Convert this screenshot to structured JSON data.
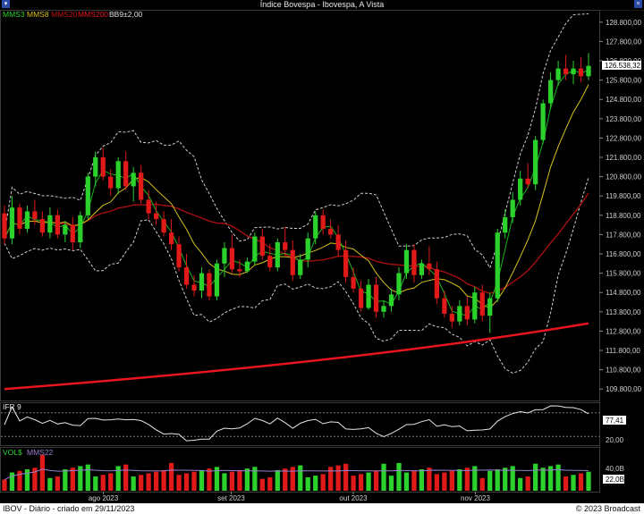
{
  "window": {
    "title": "Índice Bovespa - Ibovespa, A Vista"
  },
  "legend": {
    "mms3": "MMS3",
    "mms8": "MMS8",
    "mms20": "MMS20",
    "mms200": "MMS200",
    "bb": "BB9±2,00"
  },
  "colors": {
    "up": "#2cd22c",
    "down": "#e01919",
    "mms3": "#19b419",
    "mms8": "#d6c21a",
    "mms20": "#b01010",
    "mms200": "#e8141e",
    "bands": "#cfcfcf",
    "last_price_bg": "#ffffff"
  },
  "price_axis": {
    "ticks": [
      "128.800,00",
      "127.800,00",
      "126.800,00",
      "125.800,00",
      "124.800,00",
      "123.800,00",
      "122.800,00",
      "121.800,00",
      "120.800,00",
      "119.800,00",
      "118.800,00",
      "117.800,00",
      "116.800,00",
      "115.800,00",
      "114.800,00",
      "113.800,00",
      "112.800,00",
      "111.800,00",
      "110.800,00",
      "109.800,00"
    ],
    "last_price": "126.538,32"
  },
  "ifr": {
    "label": "IFR 9",
    "value": "77,41",
    "ticks": [
      "20,00"
    ]
  },
  "volume": {
    "label_a": "VOL$",
    "label_b": "MMS22",
    "ticks": [
      "40,0B",
      "22,0B"
    ]
  },
  "x_axis": {
    "labels": [
      "ago 2023",
      "set 2023",
      "out 2023",
      "nov 2023"
    ]
  },
  "footer": {
    "left": "IBOV - Diário - criado em 29/11/2023",
    "right": "© 2023 Broadcast"
  },
  "chart_data": {
    "type": "candlestick",
    "title": "Índice Bovespa - Ibovespa, A Vista",
    "ylim": [
      109300,
      129300
    ],
    "candles": [
      [
        118900,
        119300,
        117300,
        117600
      ],
      [
        117600,
        119800,
        117300,
        119200
      ],
      [
        119200,
        119400,
        117800,
        118100
      ],
      [
        118100,
        119300,
        117900,
        119000
      ],
      [
        119000,
        119600,
        118300,
        118600
      ],
      [
        118600,
        119000,
        117700,
        117900
      ],
      [
        117900,
        119200,
        117600,
        118800
      ],
      [
        118800,
        119100,
        117600,
        117800
      ],
      [
        117800,
        118500,
        117400,
        118300
      ],
      [
        118300,
        118700,
        117000,
        117400
      ],
      [
        117400,
        119000,
        117100,
        118800
      ],
      [
        118800,
        121000,
        118600,
        120800
      ],
      [
        120800,
        122100,
        120300,
        121800
      ],
      [
        121800,
        122300,
        120600,
        120800
      ],
      [
        120800,
        121200,
        119800,
        120200
      ],
      [
        120200,
        121800,
        119900,
        121600
      ],
      [
        121600,
        122100,
        120100,
        120300
      ],
      [
        120300,
        121300,
        119500,
        121000
      ],
      [
        121000,
        121400,
        119400,
        119600
      ],
      [
        119600,
        120100,
        118600,
        118900
      ],
      [
        118900,
        119500,
        118300,
        118600
      ],
      [
        118600,
        119000,
        117700,
        117900
      ],
      [
        117900,
        118600,
        117000,
        117300
      ],
      [
        117300,
        117700,
        115900,
        116100
      ],
      [
        116100,
        116800,
        115000,
        115200
      ],
      [
        115200,
        115700,
        114600,
        114900
      ],
      [
        114900,
        116100,
        114500,
        115800
      ],
      [
        115800,
        116000,
        114400,
        114600
      ],
      [
        114600,
        116500,
        114400,
        116300
      ],
      [
        116300,
        117400,
        115600,
        117100
      ],
      [
        117100,
        117800,
        115800,
        116000
      ],
      [
        116000,
        116500,
        115600,
        115900
      ],
      [
        115900,
        116600,
        115800,
        116400
      ],
      [
        116400,
        117900,
        116200,
        117700
      ],
      [
        117700,
        118100,
        116500,
        116700
      ],
      [
        116700,
        117300,
        115900,
        116100
      ],
      [
        116100,
        117600,
        115900,
        117400
      ],
      [
        117400,
        118200,
        116700,
        117000
      ],
      [
        117000,
        117500,
        115400,
        115700
      ],
      [
        115700,
        116800,
        115500,
        116500
      ],
      [
        116500,
        117900,
        116100,
        117600
      ],
      [
        117600,
        119000,
        117300,
        118800
      ],
      [
        118800,
        119100,
        117800,
        118100
      ],
      [
        118100,
        118600,
        117600,
        117800
      ],
      [
        117800,
        118300,
        116700,
        117000
      ],
      [
        117000,
        117500,
        115300,
        115600
      ],
      [
        115600,
        116100,
        114800,
        115000
      ],
      [
        115000,
        115400,
        113800,
        114000
      ],
      [
        114000,
        115500,
        113900,
        115200
      ],
      [
        115200,
        115600,
        113500,
        113800
      ],
      [
        113800,
        114400,
        113500,
        114100
      ],
      [
        114100,
        115000,
        113800,
        114700
      ],
      [
        114700,
        116100,
        114400,
        115800
      ],
      [
        115800,
        117300,
        115500,
        117000
      ],
      [
        117000,
        117300,
        115300,
        115700
      ],
      [
        115700,
        116500,
        115500,
        116300
      ],
      [
        116300,
        117200,
        115700,
        116000
      ],
      [
        116000,
        116400,
        114200,
        114500
      ],
      [
        114500,
        114900,
        113500,
        113700
      ],
      [
        113700,
        114100,
        113000,
        113300
      ],
      [
        113300,
        114400,
        113100,
        114100
      ],
      [
        114100,
        114600,
        113100,
        113400
      ],
      [
        113400,
        115100,
        113200,
        114800
      ],
      [
        114800,
        115200,
        113300,
        113600
      ],
      [
        113600,
        114800,
        112700,
        114500
      ],
      [
        114500,
        118100,
        114300,
        117900
      ],
      [
        117900,
        119100,
        117600,
        118700
      ],
      [
        118700,
        120000,
        118400,
        119600
      ],
      [
        119600,
        121100,
        119300,
        120700
      ],
      [
        120700,
        121500,
        120200,
        120400
      ],
      [
        120400,
        122900,
        120100,
        122700
      ],
      [
        122700,
        124800,
        122500,
        124600
      ],
      [
        124600,
        126200,
        124300,
        125800
      ],
      [
        125800,
        126800,
        125500,
        126400
      ],
      [
        126400,
        127100,
        125800,
        126100
      ],
      [
        126100,
        126800,
        125600,
        126400
      ],
      [
        126400,
        127000,
        125700,
        126000
      ],
      [
        126000,
        127200,
        125800,
        126538
      ]
    ],
    "mms200": {
      "start": 109800,
      "end": 113200
    },
    "ifr_last": 77.41,
    "volume_ref": 22.0,
    "x_labels": [
      "ago 2023",
      "set 2023",
      "out 2023",
      "nov 2023"
    ]
  }
}
